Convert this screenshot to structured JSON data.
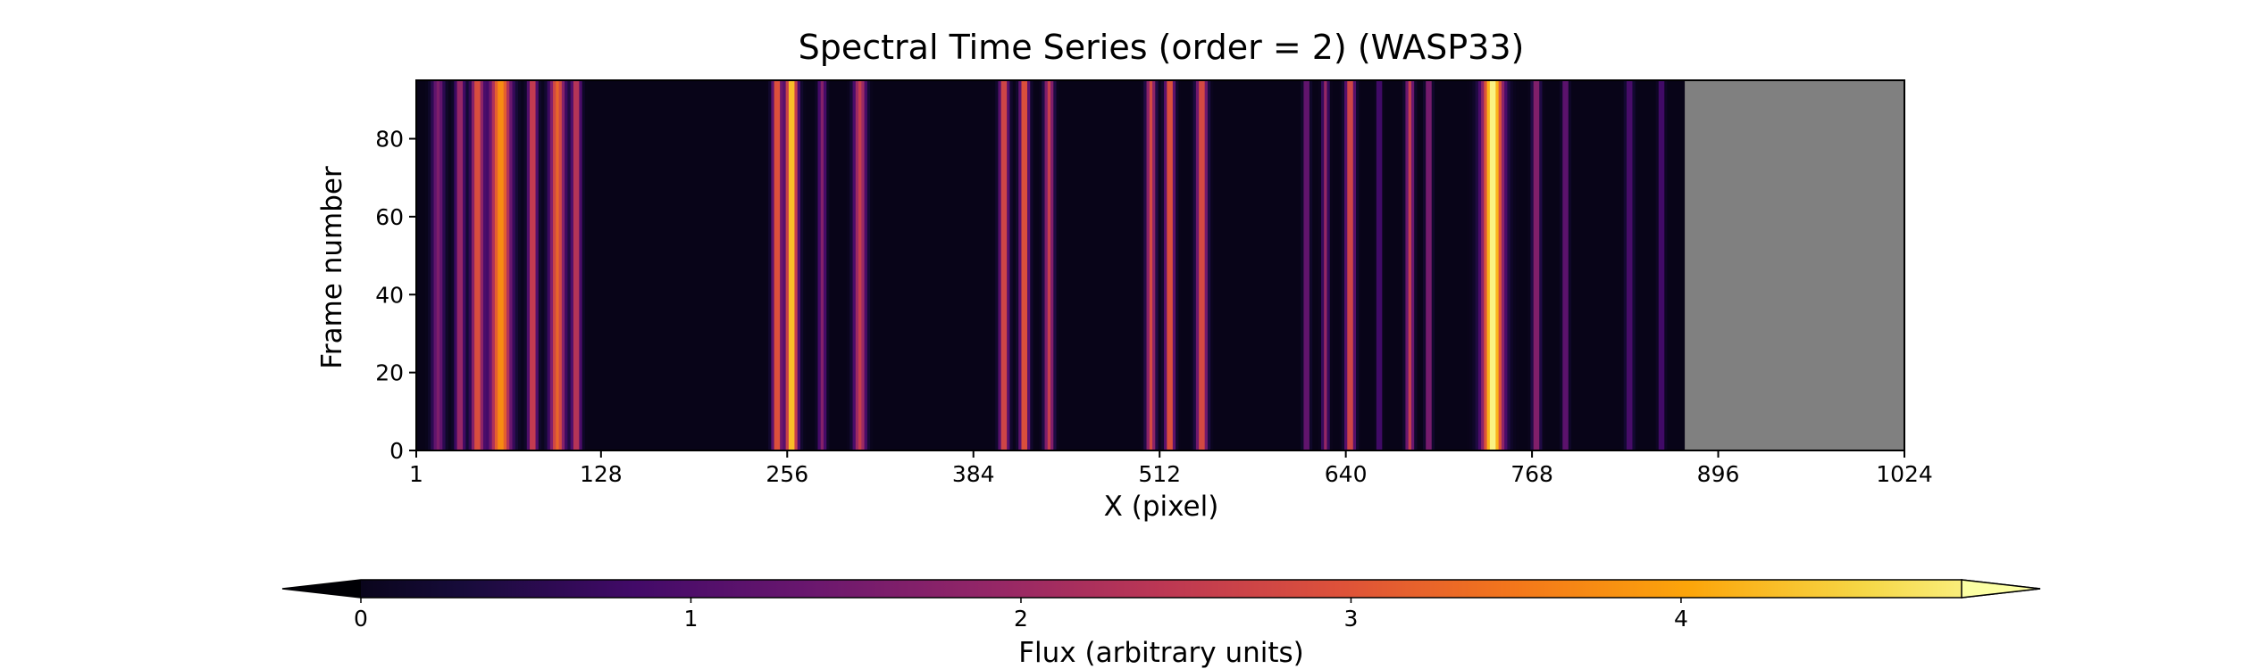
{
  "chart_data": {
    "type": "heatmap",
    "title": "Spectral Time Series (order = 2) (WASP33)",
    "xlabel": "X (pixel)",
    "ylabel": "Frame number",
    "xlim": [
      1,
      1024
    ],
    "ylim": [
      0,
      95
    ],
    "xticks": [
      1,
      128,
      256,
      384,
      512,
      640,
      768,
      896,
      1024
    ],
    "yticks": [
      0,
      20,
      40,
      60,
      80
    ],
    "data_x_end": 873,
    "masked_region": {
      "x_range": [
        873,
        1024
      ],
      "color": "#808080"
    },
    "colormap": "inferno",
    "colorbar": {
      "label": "Flux (arbitrary units)",
      "range": [
        0,
        4.85
      ],
      "ticks": [
        0,
        1,
        2,
        3,
        4
      ],
      "extend": "both",
      "orientation": "horizontal"
    },
    "emission_bands": [
      {
        "center": 15,
        "width": 8,
        "flux": 1.5
      },
      {
        "center": 30,
        "width": 6,
        "flux": 2.0
      },
      {
        "center": 42,
        "width": 8,
        "flux": 2.8
      },
      {
        "center": 58,
        "width": 14,
        "flux": 3.5
      },
      {
        "center": 80,
        "width": 6,
        "flux": 2.6
      },
      {
        "center": 97,
        "width": 10,
        "flux": 3.0
      },
      {
        "center": 110,
        "width": 6,
        "flux": 2.4
      },
      {
        "center": 248,
        "width": 6,
        "flux": 3.0
      },
      {
        "center": 258,
        "width": 8,
        "flux": 4.2
      },
      {
        "center": 279,
        "width": 5,
        "flux": 1.6
      },
      {
        "center": 305,
        "width": 8,
        "flux": 2.4
      },
      {
        "center": 404,
        "width": 6,
        "flux": 2.8
      },
      {
        "center": 418,
        "width": 6,
        "flux": 3.0
      },
      {
        "center": 435,
        "width": 6,
        "flux": 2.4
      },
      {
        "center": 505,
        "width": 6,
        "flux": 2.6
      },
      {
        "center": 518,
        "width": 6,
        "flux": 3.0
      },
      {
        "center": 540,
        "width": 7,
        "flux": 2.8
      },
      {
        "center": 612,
        "width": 4,
        "flux": 1.5
      },
      {
        "center": 625,
        "width": 4,
        "flux": 1.8
      },
      {
        "center": 642,
        "width": 6,
        "flux": 2.8
      },
      {
        "center": 662,
        "width": 3,
        "flux": 1.2
      },
      {
        "center": 683,
        "width": 5,
        "flux": 2.4
      },
      {
        "center": 696,
        "width": 4,
        "flux": 1.8
      },
      {
        "center": 740,
        "width": 14,
        "flux": 4.6
      },
      {
        "center": 770,
        "width": 5,
        "flux": 1.8
      },
      {
        "center": 790,
        "width": 4,
        "flux": 1.4
      },
      {
        "center": 834,
        "width": 5,
        "flux": 1.0
      },
      {
        "center": 856,
        "width": 4,
        "flux": 1.0
      }
    ]
  }
}
